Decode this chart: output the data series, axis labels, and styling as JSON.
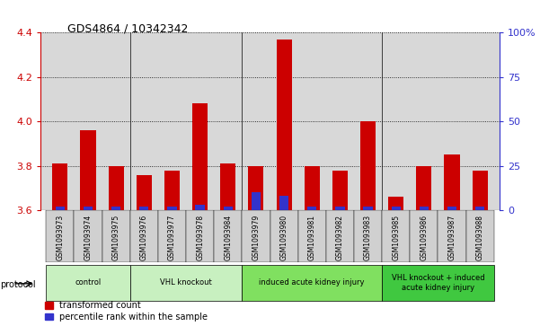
{
  "title": "GDS4864 / 10342342",
  "samples": [
    "GSM1093973",
    "GSM1093974",
    "GSM1093975",
    "GSM1093976",
    "GSM1093977",
    "GSM1093978",
    "GSM1093984",
    "GSM1093979",
    "GSM1093980",
    "GSM1093981",
    "GSM1093982",
    "GSM1093983",
    "GSM1093985",
    "GSM1093986",
    "GSM1093987",
    "GSM1093988"
  ],
  "transformed_count": [
    3.81,
    3.96,
    3.8,
    3.76,
    3.78,
    4.08,
    3.81,
    3.8,
    4.37,
    3.8,
    3.78,
    4.0,
    3.66,
    3.8,
    3.85,
    3.78
  ],
  "percentile_rank": [
    2,
    2,
    2,
    2,
    2,
    3,
    2,
    10,
    8,
    2,
    2,
    2,
    2,
    2,
    2,
    2
  ],
  "ylim_left": [
    3.6,
    4.4
  ],
  "ylim_right": [
    0,
    100
  ],
  "yticks_left": [
    3.6,
    3.8,
    4.0,
    4.2,
    4.4
  ],
  "yticks_right": [
    0,
    25,
    50,
    75,
    100
  ],
  "groups": [
    {
      "label": "control",
      "count": 3,
      "color": "#c8f0c0"
    },
    {
      "label": "VHL knockout",
      "count": 4,
      "color": "#c8f0c0"
    },
    {
      "label": "induced acute kidney injury",
      "count": 5,
      "color": "#80e060"
    },
    {
      "label": "VHL knockout + induced\nacute kidney injury",
      "count": 4,
      "color": "#40c840"
    }
  ],
  "bar_color_red": "#cc0000",
  "bar_color_blue": "#3333cc",
  "bar_width": 0.55,
  "plot_bg_color": "#d8d8d8",
  "tick_label_bg": "#d0d0d0",
  "left_axis_color": "#cc0000",
  "right_axis_color": "#3333cc",
  "baseline": 3.6,
  "legend_items": [
    "transformed count",
    "percentile rank within the sample"
  ],
  "protocol_label": "protocol"
}
